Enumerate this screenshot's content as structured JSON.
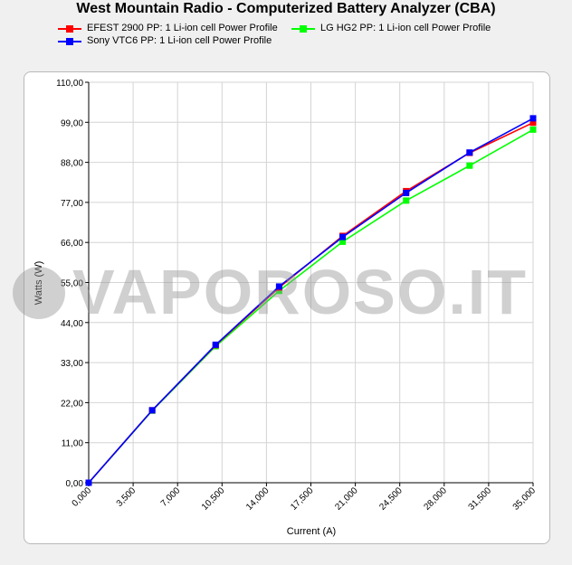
{
  "chart_data": {
    "type": "line",
    "title": "West Mountain Radio - Computerized Battery Analyzer (CBA)",
    "xlabel": "Current (A)",
    "ylabel": "Watts (W)",
    "xlim": [
      0,
      35
    ],
    "ylim": [
      0,
      110
    ],
    "x_ticks": [
      "0,000",
      "3,500",
      "7,000",
      "10,500",
      "14,000",
      "17,500",
      "21,000",
      "24,500",
      "28,000",
      "31,500",
      "35,000"
    ],
    "y_ticks": [
      "0,00",
      "11,00",
      "22,00",
      "33,00",
      "44,00",
      "55,00",
      "66,00",
      "77,00",
      "88,00",
      "99,00",
      "110,00"
    ],
    "grid": true,
    "legend_position": "top",
    "series": [
      {
        "name": "EFEST 2900 PP: 1 Li-ion cell Power Profile",
        "color": "#ff0000",
        "x": [
          0,
          5,
          10,
          15,
          20,
          25,
          30,
          35
        ],
        "y": [
          0,
          19.9,
          37.8,
          53.6,
          67.8,
          80.1,
          90.6,
          98.9
        ]
      },
      {
        "name": "LG HG2 PP: 1 Li-ion cell Power Profile",
        "color": "#00ff00",
        "x": [
          0,
          5,
          10,
          15,
          20,
          25,
          30,
          35
        ],
        "y": [
          0,
          19.8,
          37.5,
          52.7,
          66.2,
          77.5,
          87.1,
          97.0
        ]
      },
      {
        "name": "Sony VTC6 PP: 1 Li-ion cell Power Profile",
        "color": "#0000ff",
        "x": [
          0,
          5,
          10,
          15,
          20,
          25,
          30,
          35
        ],
        "y": [
          0,
          19.9,
          37.9,
          53.9,
          67.5,
          79.6,
          90.7,
          100.1
        ]
      }
    ]
  },
  "watermark": "VAPOROSO.IT"
}
